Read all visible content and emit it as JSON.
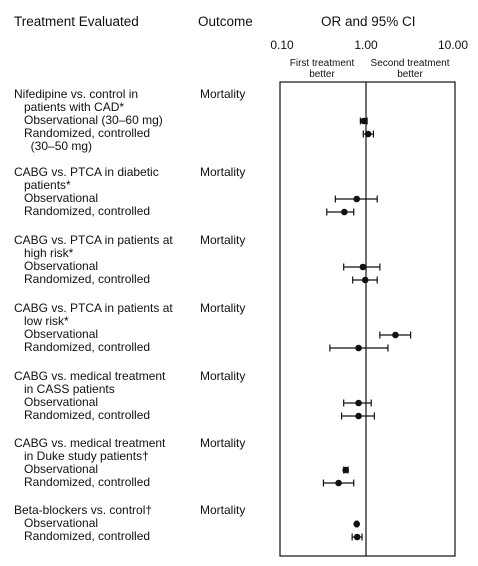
{
  "headers": {
    "treatment": "Treatment Evaluated",
    "outcome": "Outcome",
    "or_ci": "OR and 95% CI"
  },
  "axis": {
    "ticks": [
      "0.10",
      "1.00",
      "10.00"
    ],
    "left_note": [
      "First treatment",
      "better"
    ],
    "right_note": [
      "Second treatment",
      "better"
    ]
  },
  "chart_data": {
    "type": "forest",
    "x_scale": "log",
    "xlim": [
      0.1,
      10
    ],
    "reference_line": 1.0,
    "groups": [
      {
        "title_lines": [
          "Nifedipine vs. control in",
          "   patients with CAD*"
        ],
        "outcome": "Mortality",
        "rows": [
          {
            "label": "   Observational (30–60 mg)",
            "or": 0.94,
            "lo": 0.86,
            "hi": 1.03
          },
          {
            "label": "   Randomized, controlled",
            "or": 1.06,
            "lo": 0.93,
            "hi": 1.22
          },
          {
            "label": "     (30–50 mg)"
          }
        ]
      },
      {
        "title_lines": [
          "CABG vs. PTCA in diabetic",
          "   patients*"
        ],
        "outcome": "Mortality",
        "rows": [
          {
            "label": "   Observational",
            "or": 0.78,
            "lo": 0.44,
            "hi": 1.35
          },
          {
            "label": "   Randomized, controlled",
            "or": 0.56,
            "lo": 0.35,
            "hi": 0.72
          }
        ]
      },
      {
        "title_lines": [
          "CABG vs. PTCA in patients at",
          "   high risk*"
        ],
        "outcome": "Mortality",
        "rows": [
          {
            "label": "   Observational",
            "or": 0.92,
            "lo": 0.55,
            "hi": 1.45
          },
          {
            "label": "   Randomized, controlled",
            "or": 0.98,
            "lo": 0.7,
            "hi": 1.35
          }
        ]
      },
      {
        "title_lines": [
          "CABG vs. PTCA in patients at",
          "   low risk*"
        ],
        "outcome": "Mortality",
        "rows": [
          {
            "label": "   Observational",
            "or": 2.2,
            "lo": 1.45,
            "hi": 3.3
          },
          {
            "label": "   Randomized, controlled",
            "or": 0.82,
            "lo": 0.38,
            "hi": 1.8
          }
        ]
      },
      {
        "title_lines": [
          "CABG vs. medical treatment",
          "   in CASS patients"
        ],
        "outcome": "Mortality",
        "rows": [
          {
            "label": "   Observational",
            "or": 0.82,
            "lo": 0.55,
            "hi": 1.15
          },
          {
            "label": "   Randomized, controlled",
            "or": 0.82,
            "lo": 0.52,
            "hi": 1.25
          }
        ]
      },
      {
        "title_lines": [
          "CABG vs. medical treatment",
          "   in Duke study patients†"
        ],
        "outcome": "Mortality",
        "rows": [
          {
            "label": "   Observational",
            "or": 0.58,
            "lo": 0.55,
            "hi": 0.62
          },
          {
            "label": "   Randomized, controlled",
            "or": 0.48,
            "lo": 0.32,
            "hi": 0.72
          }
        ]
      },
      {
        "title_lines": [
          "Beta-blockers vs. control†"
        ],
        "outcome": "Mortality",
        "rows": [
          {
            "label": "   Observational",
            "or": 0.78,
            "lo": 0.76,
            "hi": 0.8
          },
          {
            "label": "   Randomized, controlled",
            "or": 0.79,
            "lo": 0.69,
            "hi": 0.9
          }
        ]
      }
    ]
  }
}
